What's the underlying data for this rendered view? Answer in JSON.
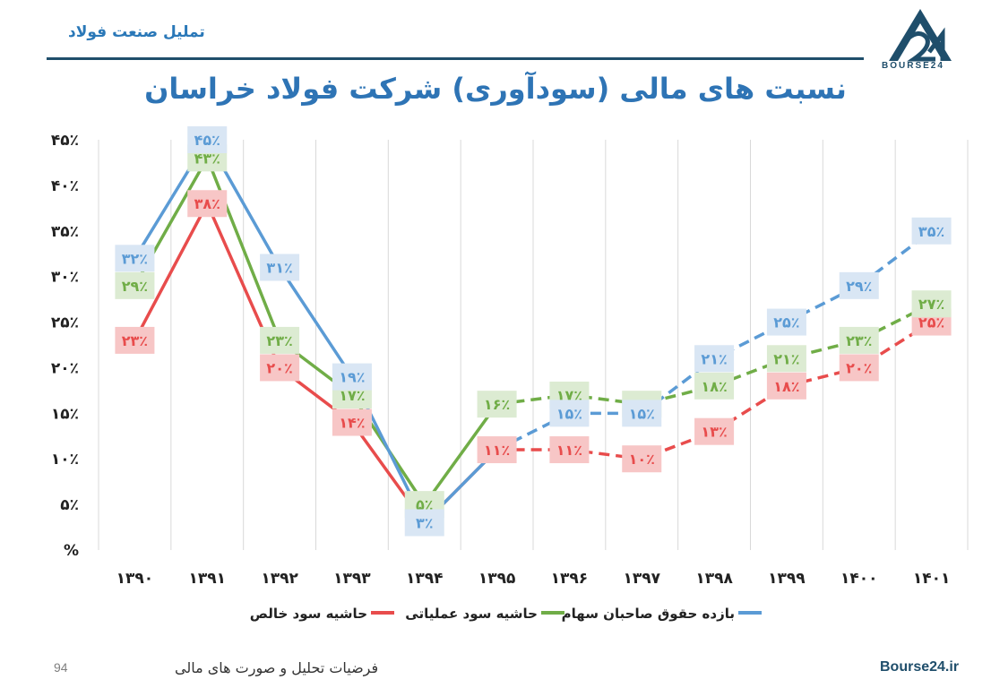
{
  "header": {
    "brand_left": "تملیل صنعت فولاد",
    "logo_text": "BOURSE24"
  },
  "footer": {
    "page_number": "94",
    "text": "فرضیات تحلیل و صورت های مالی",
    "site": "Bourse24.ir"
  },
  "chart_data": {
    "type": "line",
    "title": "نسبت های مالی (سودآوری) شرکت فولاد خراسان",
    "categories": [
      "۱۳۹۰",
      "۱۳۹۱",
      "۱۳۹۲",
      "۱۳۹۳",
      "۱۳۹۴",
      "۱۳۹۵",
      "۱۳۹۶",
      "۱۳۹۷",
      "۱۳۹۸",
      "۱۳۹۹",
      "۱۴۰۰",
      "۱۴۰۱"
    ],
    "y_ticks": [
      "%",
      "۵٪",
      "۱۰٪",
      "۱۵٪",
      "۲۰٪",
      "۲۵٪",
      "۳۰٪",
      "۳۵٪",
      "۴۰٪",
      "۴۵٪"
    ],
    "ylim": [
      0,
      45
    ],
    "grid": "vertical",
    "legend_position": "bottom",
    "projection_start_index": 6,
    "series": [
      {
        "name": "حاشیه سود خالص",
        "color": "#e84c4c",
        "label_bg": "#f7c6c6",
        "values": [
          23,
          38,
          20,
          14,
          3,
          11,
          11,
          10,
          13,
          18,
          20,
          25
        ],
        "labels": [
          "۲۳٪",
          "۳۸٪",
          "۲۰٪",
          "۱۴٪",
          "",
          "۱۱٪",
          "۱۱٪",
          "۱۰٪",
          "۱۳٪",
          "۱۸٪",
          "۲۰٪",
          "۲۵٪"
        ]
      },
      {
        "name": "حاشیه سود عملیاتی",
        "color": "#70ad47",
        "label_bg": "#dcebd2",
        "values": [
          29,
          43,
          23,
          17,
          5,
          16,
          17,
          16,
          18,
          21,
          23,
          27
        ],
        "labels": [
          "۲۹٪",
          "۴۳٪",
          "۲۳٪",
          "۱۷٪",
          "۵٪",
          "۱۶٪",
          "۱۷٪",
          "۱۶٪",
          "۱۸٪",
          "۲۱٪",
          "۲۳٪",
          "۲۷٪"
        ]
      },
      {
        "name": "بازده حقوق صاحبان سهام",
        "color": "#5b9bd5",
        "label_bg": "#d9e6f4",
        "values": [
          32,
          45,
          31,
          19,
          3,
          11,
          15,
          15,
          21,
          25,
          29,
          35
        ],
        "labels": [
          "۳۲٪",
          "۴۵٪",
          "۳۱٪",
          "۱۹٪",
          "۳٪",
          "",
          "۱۵٪",
          "۱۵٪",
          "۲۱٪",
          "۲۵٪",
          "۲۹٪",
          "۳۵٪"
        ]
      }
    ]
  }
}
